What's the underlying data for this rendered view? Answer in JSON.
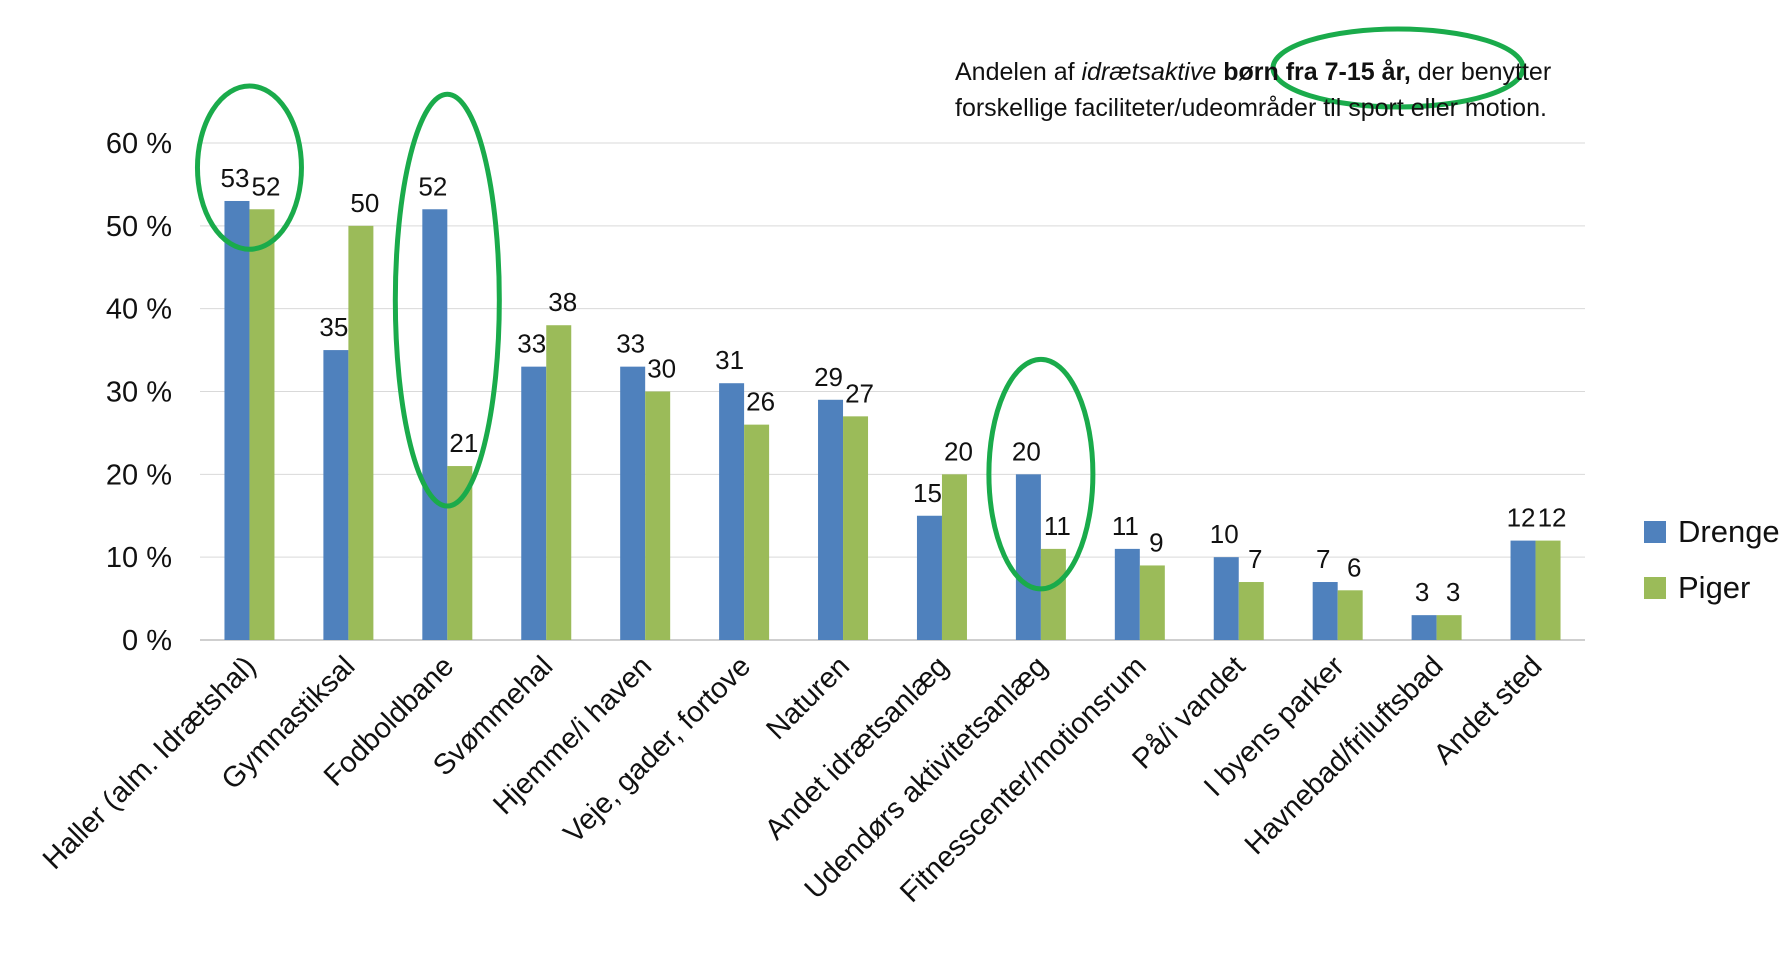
{
  "chart_data": {
    "type": "bar",
    "annotation": {
      "part1": "Andelen af ",
      "part2_italic": "idrætsaktive",
      "part3_bold": " børn fra 7-15 år,",
      "part4": " der benytter",
      "line2": "forskellige faciliteter/udeområder til sport eller motion."
    },
    "categories": [
      "Haller (alm. Idrætshal)",
      "Gymnastiksal",
      "Fodboldbane",
      "Svømmehal",
      "Hjemme/i haven",
      "Veje, gader, fortove",
      "Naturen",
      "Andet idrætsanlæg",
      "Udendørs aktivitetsanlæg",
      "Fitnesscenter/motionsrum",
      "På/i vandet",
      "I byens parker",
      "Havnebad/friluftsbad",
      "Andet sted"
    ],
    "series": [
      {
        "name": "Drenge",
        "color": "#4f81bd",
        "values": [
          53,
          35,
          52,
          33,
          33,
          31,
          29,
          15,
          20,
          11,
          10,
          7,
          3,
          12
        ]
      },
      {
        "name": "Piger",
        "color": "#9bbb59",
        "values": [
          52,
          50,
          21,
          38,
          30,
          26,
          27,
          20,
          11,
          9,
          7,
          6,
          3,
          12
        ]
      }
    ],
    "data_labels": [
      [
        "53",
        "52"
      ],
      [
        "35",
        "50"
      ],
      [
        "52",
        "21"
      ],
      [
        "33",
        "38"
      ],
      [
        "33",
        "30"
      ],
      [
        "31",
        "26"
      ],
      [
        "29",
        "27"
      ],
      [
        "15",
        "20"
      ],
      [
        "20",
        "11"
      ],
      [
        "11",
        "9"
      ],
      [
        "10",
        "7"
      ],
      [
        "7",
        "6"
      ],
      [
        "3",
        "3"
      ],
      [
        "12",
        "12"
      ]
    ],
    "y_ticks": [
      "0 %",
      "10 %",
      "20 %",
      "30 %",
      "40 %",
      "50 %",
      "60 %"
    ],
    "ylim": [
      0,
      60
    ],
    "grid": true,
    "legend_position": "right",
    "highlighted_categories": [
      "Haller (alm. Idrætshal)",
      "Fodboldbane",
      "Udendørs aktivitetsanlæg"
    ],
    "highlight_color": "#1aab4b"
  }
}
